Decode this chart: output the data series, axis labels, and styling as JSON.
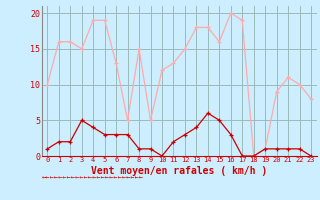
{
  "hours": [
    0,
    1,
    2,
    3,
    4,
    5,
    6,
    7,
    8,
    9,
    10,
    11,
    12,
    13,
    14,
    15,
    16,
    17,
    18,
    19,
    20,
    21,
    22,
    23
  ],
  "wind_avg": [
    1,
    2,
    2,
    5,
    4,
    3,
    3,
    3,
    1,
    1,
    0,
    2,
    3,
    4,
    6,
    5,
    3,
    0,
    0,
    1,
    1,
    1,
    1,
    0
  ],
  "wind_gust": [
    10,
    16,
    16,
    15,
    19,
    19,
    13,
    5,
    15,
    5,
    12,
    13,
    15,
    18,
    18,
    16,
    20,
    19,
    0,
    1,
    9,
    11,
    10,
    8
  ],
  "avg_color": "#cc0000",
  "gust_color": "#ffaaaa",
  "bg_color": "#cceeff",
  "grid_color": "#99bbbb",
  "text_color": "#cc0000",
  "xlabel": "Vent moyen/en rafales ( km/h )",
  "ylim": [
    0,
    21
  ],
  "yticks": [
    0,
    5,
    10,
    15,
    20
  ],
  "xticks": [
    0,
    1,
    2,
    3,
    4,
    5,
    6,
    7,
    8,
    9,
    10,
    11,
    12,
    13,
    14,
    15,
    16,
    17,
    18,
    19,
    20,
    21,
    22,
    23
  ]
}
